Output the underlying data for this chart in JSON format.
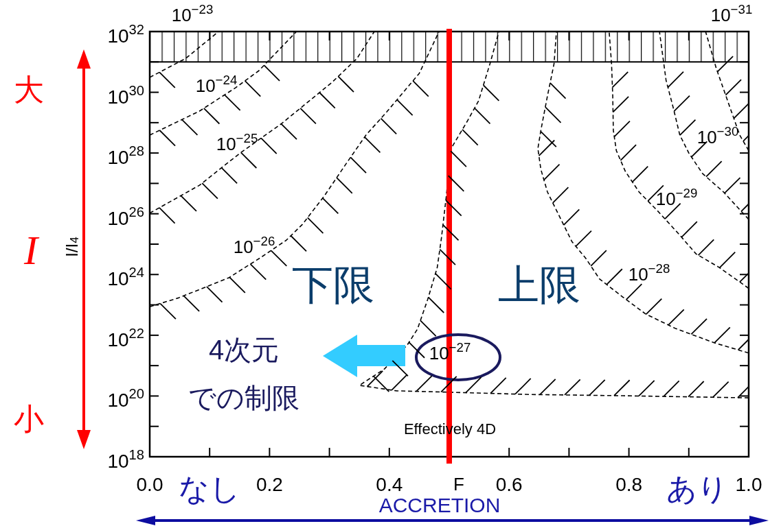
{
  "chart_data": {
    "type": "line",
    "xlabel": "F",
    "ylabel": "I/I$_{4}$",
    "log": "y",
    "line_style": "dashed",
    "xlim": [
      0,
      1
    ],
    "ylim": [
      1e+18,
      1e+32
    ],
    "xticks": [
      {
        "value": 0,
        "label": "0.0"
      },
      {
        "value": 0.1,
        "label": null
      },
      {
        "value": 0.2,
        "label": "0.2"
      },
      {
        "value": 0.3,
        "label": null
      },
      {
        "value": 0.4,
        "label": "0.4"
      },
      {
        "value": 0.5,
        "label": null
      },
      {
        "value": 0.6,
        "label": "0.6"
      },
      {
        "value": 0.7,
        "label": null
      },
      {
        "value": 0.8,
        "label": "0.8"
      },
      {
        "value": 0.9,
        "label": null
      },
      {
        "value": 1,
        "label": "1.0"
      }
    ],
    "yticks": [
      {
        "value": 1e+18,
        "label": "10$^{18}$"
      },
      {
        "value": 1e+19,
        "label": null
      },
      {
        "value": 1e+20,
        "label": "10$^{20}$"
      },
      {
        "value": 1e+21,
        "label": null
      },
      {
        "value": 1e+22,
        "label": "10$^{22}$"
      },
      {
        "value": 1e+23,
        "label": null
      },
      {
        "value": 1e+24,
        "label": "10$^{24}$"
      },
      {
        "value": 1e+25,
        "label": null
      },
      {
        "value": 1e+26,
        "label": "10$^{26}$"
      },
      {
        "value": 1e+27,
        "label": null
      },
      {
        "value": 1e+28,
        "label": "10$^{28}$"
      },
      {
        "value": 1e+29,
        "label": null
      },
      {
        "value": 1e+30,
        "label": "10$^{30}$"
      },
      {
        "value": 1e+31,
        "label": null
      },
      {
        "value": 1e+32,
        "label": "10$^{32}$"
      }
    ],
    "series": [
      {
        "color": "#000000",
        "x": [
          0,
          0.06,
          0.115
        ],
        "values": [
          3.1e+30,
          1.3e+31,
          1e+32
        ]
      },
      {
        "color": "#000000",
        "x": [
          0,
          0.083,
          0.143,
          0.182,
          0.245
        ],
        "values": [
          3.9e+28,
          2.4e+29,
          1.4e+30,
          5.1e+30,
          1e+32
        ]
      },
      {
        "color": "#000000",
        "x": [
          0,
          0.083,
          0.151,
          0.22,
          0.304,
          0.346,
          0.375
        ],
        "values": [
          1.05e+26,
          8.7e+26,
          1e+28,
          9.3e+28,
          2.1e+30,
          1.3e+31,
          1e+32
        ]
      },
      {
        "color": "#000000",
        "x": [
          0,
          0.048,
          0.132,
          0.186,
          0.228,
          0.255,
          0.292,
          0.327,
          0.361,
          0.396,
          0.45,
          0.483
        ],
        "values": [
          8.7e+22,
          1.7e+23,
          7.8e+23,
          3.7e+24,
          1.35e+25,
          4.5e+25,
          4e+26,
          4.2e+27,
          3.9e+28,
          2.3e+29,
          4.2e+30,
          1e+32
        ]
      },
      {
        "color": "#000000",
        "x": [
          1.0,
          0.79,
          0.636,
          0.507,
          0.412,
          0.35,
          0.392,
          0.43,
          0.447,
          0.464,
          0.48,
          0.487,
          0.495,
          0.503,
          0.53,
          0.549,
          0.568,
          0.583
        ],
        "values": [
          8.7e+19,
          1.02e+20,
          1.12e+20,
          1.32e+20,
          1.48e+20,
          2.24e+20,
          7.8e+20,
          4.8e+21,
          1.6e+22,
          1.5e+23,
          1.7e+24,
          1.6e+25,
          3.6e+26,
          1.4e+28,
          1.1e+29,
          5.2e+29,
          8.7e+30,
          1e+32
        ]
      },
      {
        "color": "#000000",
        "x": [
          1.0,
          0.943,
          0.877,
          0.828,
          0.79,
          0.751,
          0.728,
          0.705,
          0.679,
          0.664,
          0.653,
          0.648,
          0.653,
          0.664,
          0.675,
          0.679
        ],
        "values": [
          2.6e+21,
          5.6e+21,
          1.7e+22,
          5e+22,
          1.8e+23,
          7.1e+23,
          3.4e+24,
          1.2e+25,
          1.3e+26,
          5.2e+26,
          2.9e+27,
          1.4e+28,
          5.6e+28,
          7.6e+29,
          8.7e+30,
          1e+32
        ]
      },
      {
        "color": "#000000",
        "x": [
          1.0,
          0.951,
          0.912,
          0.882,
          0.847,
          0.817,
          0.794,
          0.779,
          0.774,
          0.773,
          0.771,
          0.767
        ],
        "values": [
          3.5e+23,
          1.7e+24,
          4.8e+24,
          2.3e+25,
          1.3e+26,
          5.2e+26,
          2.5e+27,
          1.2e+28,
          5.6e+28,
          7.6e+29,
          8.7e+30,
          1e+32
        ]
      },
      {
        "color": "#000000",
        "x": [
          1.0,
          0.958,
          0.923,
          0.9,
          0.885,
          0.874,
          0.862,
          0.851
        ],
        "values": [
          6.5e+25,
          5.2e+26,
          2.1e+27,
          1e+28,
          3.9e+28,
          3.1e+29,
          2.5e+30,
          1e+32
        ]
      },
      {
        "color": "#000000",
        "x": [
          1.0,
          0.985,
          0.966,
          0.946,
          0.928
        ],
        "values": [
          1.2e+28,
          3.9e+28,
          4.5e+29,
          6e+30,
          1e+32
        ]
      }
    ],
    "bands": [
      {
        "axis": "y",
        "from": 1e+31,
        "to": 1e+32
      }
    ],
    "ref_lines": [
      {
        "axis": "x",
        "value": 0.5,
        "color": "#ff0000"
      }
    ],
    "annotations": [
      "10$^{−24}$",
      "10$^{−25}$",
      "10$^{−26}$",
      "10$^{−27}$",
      "10$^{−28}$",
      "10$^{−29}$",
      "10$^{−30}$",
      "Effectively 4D",
      "下限",
      "上限",
      "4次元",
      "での制限",
      "10$^{−23}$",
      "10$^{−31}$",
      "大",
      "I",
      "小",
      "なし",
      "ACCRETION",
      "あり"
    ]
  }
}
